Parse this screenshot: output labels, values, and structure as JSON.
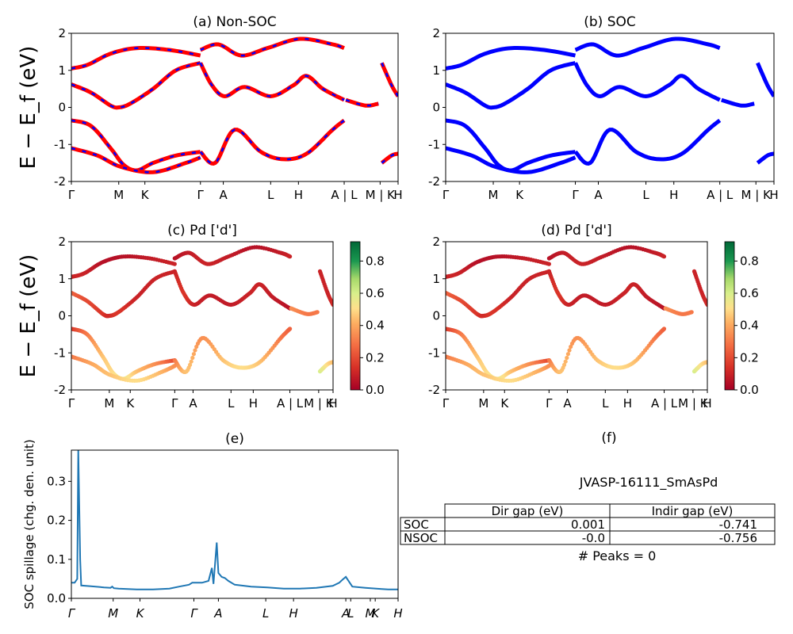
{
  "figure": {
    "jid": "JVASP-16111_SmAsPd",
    "peaks_text": "# Peaks = 0"
  },
  "ylabel_energy": "E − E_f (eV)",
  "energy_ticks": [
    "-2",
    "-1",
    "0",
    "1",
    "2"
  ],
  "kpath_labels": [
    "Γ",
    "M",
    "K",
    "Γ",
    "A",
    "L",
    "H",
    "A | L",
    "M | K",
    "H"
  ],
  "kpath_positions": [
    0.0,
    0.145,
    0.225,
    0.395,
    0.465,
    0.61,
    0.695,
    0.835,
    0.945,
    1.0
  ],
  "colors": {
    "nonsoc_red": "#ff0000",
    "nonsoc_blue": "#0000ff",
    "soc": "#0000ff",
    "spillage": "#1f77b4"
  },
  "colorbar": {
    "ticks": [
      "0.0",
      "0.2",
      "0.4",
      "0.6",
      "0.8"
    ],
    "max": 0.92
  },
  "gap_table": {
    "headers": [
      "Dir gap (eV)",
      "Indir gap (eV)"
    ],
    "rows": [
      {
        "label": "SOC",
        "dir": "0.001",
        "indir": "-0.741"
      },
      {
        "label": "NSOC",
        "dir": "-0.0",
        "indir": "-0.756"
      }
    ]
  },
  "chart_data": [
    {
      "panel": "a",
      "type": "line",
      "title": "(a) Non-SOC",
      "ylabel": "E − E_f (eV)",
      "ylim": [
        -2,
        2
      ],
      "x_ticks": [
        "Γ",
        "M",
        "K",
        "Γ",
        "A",
        "L",
        "H",
        "A | L",
        "M | K",
        "H"
      ],
      "series": [
        {
          "x": [
            0,
            0.06,
            0.12,
            0.16,
            0.2,
            0.25,
            0.32,
            0.395
          ],
          "y": [
            -0.35,
            -0.5,
            -1.1,
            -1.55,
            -1.7,
            -1.5,
            -1.3,
            -1.2
          ]
        },
        {
          "x": [
            0,
            0.06,
            0.12,
            0.145,
            0.18,
            0.25,
            0.32,
            0.395
          ],
          "y": [
            0.62,
            0.4,
            0.05,
            0.0,
            0.1,
            0.5,
            1.0,
            1.2
          ]
        },
        {
          "x": [
            0,
            0.05,
            0.12,
            0.2,
            0.3,
            0.395
          ],
          "y": [
            1.05,
            1.15,
            1.45,
            1.6,
            1.55,
            1.4
          ]
        },
        {
          "x": [
            0,
            0.08,
            0.15,
            0.25,
            0.35,
            0.395
          ],
          "y": [
            -1.1,
            -1.3,
            -1.6,
            -1.75,
            -1.5,
            -1.35
          ]
        },
        {
          "x": [
            0.395,
            0.44,
            0.5,
            0.58,
            0.65,
            0.72,
            0.8,
            0.835
          ],
          "y": [
            -1.2,
            -1.5,
            -0.6,
            -1.2,
            -1.4,
            -1.25,
            -0.6,
            -0.35
          ]
        },
        {
          "x": [
            0.395,
            0.43,
            0.47,
            0.53,
            0.61,
            0.68,
            0.72,
            0.77,
            0.835
          ],
          "y": [
            1.2,
            0.6,
            0.3,
            0.55,
            0.3,
            0.6,
            0.85,
            0.5,
            0.2
          ]
        },
        {
          "x": [
            0.395,
            0.45,
            0.52,
            0.6,
            0.7,
            0.8,
            0.835
          ],
          "y": [
            1.55,
            1.7,
            1.4,
            1.6,
            1.85,
            1.7,
            1.6
          ]
        },
        {
          "x": [
            0.84,
            0.9,
            0.94
          ],
          "y": [
            0.2,
            0.05,
            0.1
          ]
        },
        {
          "x": [
            0.95,
            0.98,
            1.0
          ],
          "y": [
            -1.5,
            -1.3,
            -1.25
          ]
        },
        {
          "x": [
            0.95,
            0.98,
            1.0
          ],
          "y": [
            1.2,
            0.6,
            0.3
          ]
        }
      ]
    },
    {
      "panel": "b",
      "type": "line",
      "title": "(b) SOC",
      "ylabel": "",
      "ylim": [
        -2,
        2
      ],
      "x_ticks": [
        "Γ",
        "M",
        "K",
        "Γ",
        "A",
        "L",
        "H",
        "A | L",
        "M | K",
        "H"
      ],
      "series": [
        {
          "x": [
            0,
            0.06,
            0.12,
            0.16,
            0.2,
            0.25,
            0.32,
            0.395
          ],
          "y": [
            -0.35,
            -0.5,
            -1.1,
            -1.55,
            -1.7,
            -1.5,
            -1.3,
            -1.2
          ]
        },
        {
          "x": [
            0,
            0.06,
            0.12,
            0.145,
            0.18,
            0.25,
            0.32,
            0.395
          ],
          "y": [
            0.62,
            0.4,
            0.05,
            0.0,
            0.1,
            0.5,
            1.0,
            1.2
          ]
        },
        {
          "x": [
            0,
            0.05,
            0.12,
            0.2,
            0.3,
            0.395
          ],
          "y": [
            1.05,
            1.15,
            1.45,
            1.6,
            1.55,
            1.4
          ]
        },
        {
          "x": [
            0,
            0.08,
            0.15,
            0.25,
            0.35,
            0.395
          ],
          "y": [
            -1.1,
            -1.3,
            -1.6,
            -1.75,
            -1.5,
            -1.35
          ]
        },
        {
          "x": [
            0.395,
            0.44,
            0.5,
            0.58,
            0.65,
            0.72,
            0.8,
            0.835
          ],
          "y": [
            -1.2,
            -1.5,
            -0.6,
            -1.2,
            -1.4,
            -1.25,
            -0.6,
            -0.35
          ]
        },
        {
          "x": [
            0.395,
            0.43,
            0.47,
            0.53,
            0.61,
            0.68,
            0.72,
            0.77,
            0.835
          ],
          "y": [
            1.2,
            0.6,
            0.3,
            0.55,
            0.3,
            0.6,
            0.85,
            0.5,
            0.2
          ]
        },
        {
          "x": [
            0.395,
            0.45,
            0.52,
            0.6,
            0.7,
            0.8,
            0.835
          ],
          "y": [
            1.55,
            1.7,
            1.4,
            1.6,
            1.85,
            1.7,
            1.6
          ]
        },
        {
          "x": [
            0.84,
            0.9,
            0.94
          ],
          "y": [
            0.2,
            0.05,
            0.1
          ]
        },
        {
          "x": [
            0.95,
            0.98,
            1.0
          ],
          "y": [
            -1.5,
            -1.3,
            -1.25
          ]
        },
        {
          "x": [
            0.95,
            0.98,
            1.0
          ],
          "y": [
            1.2,
            0.6,
            0.3
          ]
        }
      ]
    },
    {
      "panel": "c",
      "type": "scatter",
      "title": "(c)  Pd ['d']",
      "ylabel": "E − E_f (eV)",
      "ylim": [
        -2,
        2
      ],
      "x_ticks": [
        "Γ",
        "M",
        "K",
        "Γ",
        "A",
        "L",
        "H",
        "A | L",
        "M | K",
        "H"
      ],
      "series": [
        {
          "x": [
            0,
            0.06,
            0.12,
            0.16,
            0.2,
            0.25,
            0.32,
            0.395
          ],
          "y": [
            -0.35,
            -0.5,
            -1.1,
            -1.55,
            -1.7,
            -1.5,
            -1.3,
            -1.2
          ],
          "w": [
            0.15,
            0.3,
            0.45,
            0.5,
            0.55,
            0.45,
            0.35,
            0.2
          ]
        },
        {
          "x": [
            0,
            0.06,
            0.12,
            0.145,
            0.18,
            0.25,
            0.32,
            0.395
          ],
          "y": [
            0.62,
            0.4,
            0.05,
            0.0,
            0.1,
            0.5,
            1.0,
            1.2
          ],
          "w": [
            0.25,
            0.2,
            0.15,
            0.12,
            0.15,
            0.1,
            0.1,
            0.1
          ]
        },
        {
          "x": [
            0,
            0.05,
            0.12,
            0.2,
            0.3,
            0.395
          ],
          "y": [
            1.05,
            1.15,
            1.45,
            1.6,
            1.55,
            1.4
          ],
          "w": [
            0.1,
            0.1,
            0.05,
            0.05,
            0.08,
            0.1
          ]
        },
        {
          "x": [
            0,
            0.08,
            0.15,
            0.25,
            0.35,
            0.395
          ],
          "y": [
            -1.1,
            -1.3,
            -1.6,
            -1.75,
            -1.5,
            -1.35
          ],
          "w": [
            0.3,
            0.4,
            0.45,
            0.5,
            0.42,
            0.35
          ]
        },
        {
          "x": [
            0.395,
            0.44,
            0.5,
            0.58,
            0.65,
            0.72,
            0.8,
            0.835
          ],
          "y": [
            -1.2,
            -1.5,
            -0.6,
            -1.2,
            -1.4,
            -1.25,
            -0.6,
            -0.35
          ],
          "w": [
            0.3,
            0.45,
            0.35,
            0.45,
            0.5,
            0.45,
            0.3,
            0.25
          ]
        },
        {
          "x": [
            0.395,
            0.43,
            0.47,
            0.53,
            0.61,
            0.68,
            0.72,
            0.77,
            0.835
          ],
          "y": [
            1.2,
            0.6,
            0.3,
            0.55,
            0.3,
            0.6,
            0.85,
            0.5,
            0.2
          ],
          "w": [
            0.1,
            0.15,
            0.1,
            0.08,
            0.08,
            0.1,
            0.1,
            0.08,
            0.05
          ]
        },
        {
          "x": [
            0.395,
            0.45,
            0.52,
            0.6,
            0.7,
            0.8,
            0.835
          ],
          "y": [
            1.55,
            1.7,
            1.4,
            1.6,
            1.85,
            1.7,
            1.6
          ],
          "w": [
            0.05,
            0.08,
            0.1,
            0.08,
            0.05,
            0.08,
            0.1
          ]
        },
        {
          "x": [
            0.84,
            0.9,
            0.94
          ],
          "y": [
            0.2,
            0.05,
            0.1
          ],
          "w": [
            0.35,
            0.3,
            0.3
          ]
        },
        {
          "x": [
            0.95,
            0.98,
            1.0
          ],
          "y": [
            -1.5,
            -1.3,
            -1.25
          ],
          "w": [
            0.6,
            0.5,
            0.45
          ]
        },
        {
          "x": [
            0.95,
            0.98,
            1.0
          ],
          "y": [
            1.2,
            0.6,
            0.3
          ],
          "w": [
            0.1,
            0.1,
            0.12
          ]
        }
      ]
    },
    {
      "panel": "d",
      "type": "scatter",
      "title": "(d) Pd ['d']",
      "ylabel": "",
      "ylim": [
        -2,
        2
      ],
      "x_ticks": [
        "Γ",
        "M",
        "K",
        "Γ",
        "A",
        "L",
        "H",
        "A | L",
        "M | K",
        "H"
      ],
      "series": [
        {
          "x": [
            0,
            0.06,
            0.12,
            0.16,
            0.2,
            0.25,
            0.32,
            0.395
          ],
          "y": [
            -0.35,
            -0.5,
            -1.1,
            -1.55,
            -1.7,
            -1.5,
            -1.3,
            -1.2
          ],
          "w": [
            0.15,
            0.3,
            0.45,
            0.5,
            0.55,
            0.45,
            0.35,
            0.2
          ]
        },
        {
          "x": [
            0,
            0.06,
            0.12,
            0.145,
            0.18,
            0.25,
            0.32,
            0.395
          ],
          "y": [
            0.62,
            0.4,
            0.05,
            0.0,
            0.1,
            0.5,
            1.0,
            1.2
          ],
          "w": [
            0.25,
            0.2,
            0.15,
            0.12,
            0.15,
            0.1,
            0.1,
            0.1
          ]
        },
        {
          "x": [
            0,
            0.05,
            0.12,
            0.2,
            0.3,
            0.395
          ],
          "y": [
            1.05,
            1.15,
            1.45,
            1.6,
            1.55,
            1.4
          ],
          "w": [
            0.1,
            0.1,
            0.05,
            0.05,
            0.08,
            0.1
          ]
        },
        {
          "x": [
            0,
            0.08,
            0.15,
            0.25,
            0.35,
            0.395
          ],
          "y": [
            -1.1,
            -1.3,
            -1.6,
            -1.75,
            -1.5,
            -1.35
          ],
          "w": [
            0.3,
            0.4,
            0.45,
            0.5,
            0.42,
            0.35
          ]
        },
        {
          "x": [
            0.395,
            0.44,
            0.5,
            0.58,
            0.65,
            0.72,
            0.8,
            0.835
          ],
          "y": [
            -1.2,
            -1.5,
            -0.6,
            -1.2,
            -1.4,
            -1.25,
            -0.6,
            -0.35
          ],
          "w": [
            0.3,
            0.45,
            0.35,
            0.45,
            0.5,
            0.45,
            0.3,
            0.25
          ]
        },
        {
          "x": [
            0.395,
            0.43,
            0.47,
            0.53,
            0.61,
            0.68,
            0.72,
            0.77,
            0.835
          ],
          "y": [
            1.2,
            0.6,
            0.3,
            0.55,
            0.3,
            0.6,
            0.85,
            0.5,
            0.2
          ],
          "w": [
            0.1,
            0.15,
            0.1,
            0.08,
            0.08,
            0.1,
            0.1,
            0.08,
            0.05
          ]
        },
        {
          "x": [
            0.395,
            0.45,
            0.52,
            0.6,
            0.7,
            0.8,
            0.835
          ],
          "y": [
            1.55,
            1.7,
            1.4,
            1.6,
            1.85,
            1.7,
            1.6
          ],
          "w": [
            0.05,
            0.08,
            0.1,
            0.08,
            0.05,
            0.08,
            0.1
          ]
        },
        {
          "x": [
            0.84,
            0.9,
            0.94
          ],
          "y": [
            0.2,
            0.05,
            0.1
          ],
          "w": [
            0.35,
            0.3,
            0.3
          ]
        },
        {
          "x": [
            0.95,
            0.98,
            1.0
          ],
          "y": [
            -1.5,
            -1.3,
            -1.25
          ],
          "w": [
            0.6,
            0.5,
            0.45
          ]
        },
        {
          "x": [
            0.95,
            0.98,
            1.0
          ],
          "y": [
            1.2,
            0.6,
            0.3
          ],
          "w": [
            0.1,
            0.1,
            0.12
          ]
        }
      ]
    },
    {
      "panel": "e",
      "type": "line",
      "title": "(e)",
      "ylabel": "SOC spillage (chg. den. unit)",
      "ylim": [
        0,
        0.38
      ],
      "y_ticks": [
        "0.0",
        "0.1",
        "0.2",
        "0.3"
      ],
      "x_ticks": [
        "Γ",
        "M",
        "K",
        "Γ",
        "A",
        "L",
        "H",
        "A",
        "L",
        "M",
        "K",
        "H"
      ],
      "x": [
        0,
        0.01,
        0.018,
        0.021,
        0.027,
        0.03,
        0.06,
        0.1,
        0.12,
        0.125,
        0.13,
        0.145,
        0.2,
        0.25,
        0.3,
        0.33,
        0.36,
        0.37,
        0.4,
        0.42,
        0.43,
        0.435,
        0.445,
        0.45,
        0.46,
        0.47,
        0.48,
        0.5,
        0.55,
        0.6,
        0.65,
        0.7,
        0.75,
        0.8,
        0.82,
        0.83,
        0.84,
        0.86,
        0.9,
        0.95,
        0.97,
        1.0
      ],
      "y": [
        0.04,
        0.04,
        0.05,
        0.38,
        0.1,
        0.033,
        0.031,
        0.028,
        0.027,
        0.03,
        0.026,
        0.025,
        0.023,
        0.023,
        0.025,
        0.03,
        0.035,
        0.04,
        0.04,
        0.045,
        0.078,
        0.037,
        0.143,
        0.065,
        0.055,
        0.052,
        0.045,
        0.035,
        0.03,
        0.028,
        0.025,
        0.025,
        0.027,
        0.032,
        0.04,
        0.048,
        0.055,
        0.03,
        0.027,
        0.024,
        0.023,
        0.023
      ]
    }
  ]
}
